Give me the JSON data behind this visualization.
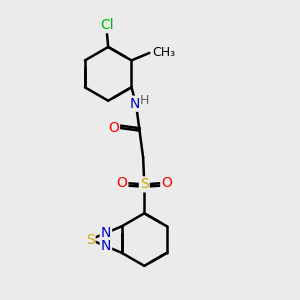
{
  "bg_color": "#ebebeb",
  "bond_color": "#000000",
  "bond_width": 1.8,
  "dbo": 0.08,
  "atom_colors": {
    "C": "#000000",
    "N": "#0000cc",
    "O": "#ff0000",
    "S": "#ccaa00",
    "Cl": "#00bb00",
    "H": "#606060"
  },
  "font_size": 10,
  "font_size_small": 9
}
